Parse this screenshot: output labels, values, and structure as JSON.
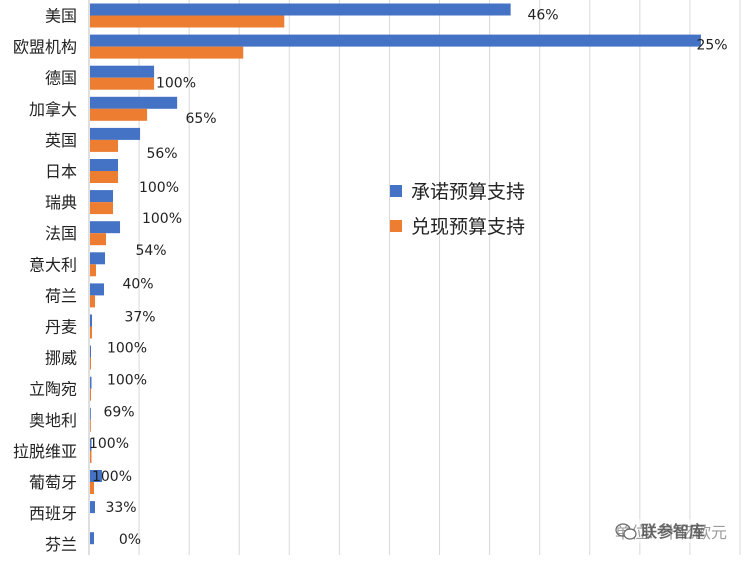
{
  "chart_data": {
    "type": "bar",
    "orientation": "horizontal",
    "categories": [
      "美国",
      "欧盟机构",
      "德国",
      "加拿大",
      "英国",
      "日本",
      "瑞典",
      "法国",
      "意大利",
      "荷兰",
      "丹麦",
      "挪威",
      "立陶宛",
      "奥地利",
      "拉脱维亚",
      "葡萄牙",
      "西班牙",
      "芬兰"
    ],
    "series": [
      {
        "name": "承诺预算支持",
        "color": "#4472C4",
        "values": [
          420,
          610,
          64,
          87,
          50,
          28,
          23,
          30,
          15,
          14,
          2,
          1,
          1.5,
          0.8,
          1.5,
          12,
          5,
          4
        ]
      },
      {
        "name": "兑现预算支持",
        "color": "#ED7D31",
        "values": [
          194,
          153,
          64,
          57,
          28,
          28,
          23,
          16,
          6,
          5,
          2,
          1,
          1.0,
          0.8,
          1.5,
          4,
          0,
          0
        ]
      }
    ],
    "data_labels": [
      "46%",
      "25%",
      "100%",
      "65%",
      "56%",
      "100%",
      "100%",
      "54%",
      "40%",
      "37%",
      "100%",
      "100%",
      "69%",
      "100%",
      "100%",
      "33%",
      "0%",
      "0%"
    ],
    "xlim": [
      0,
      650
    ],
    "x_gridline_step": 50,
    "grid": true,
    "legend_position": "center-right",
    "unit_note": "单位：十亿欧元",
    "watermark": "联参智库"
  }
}
